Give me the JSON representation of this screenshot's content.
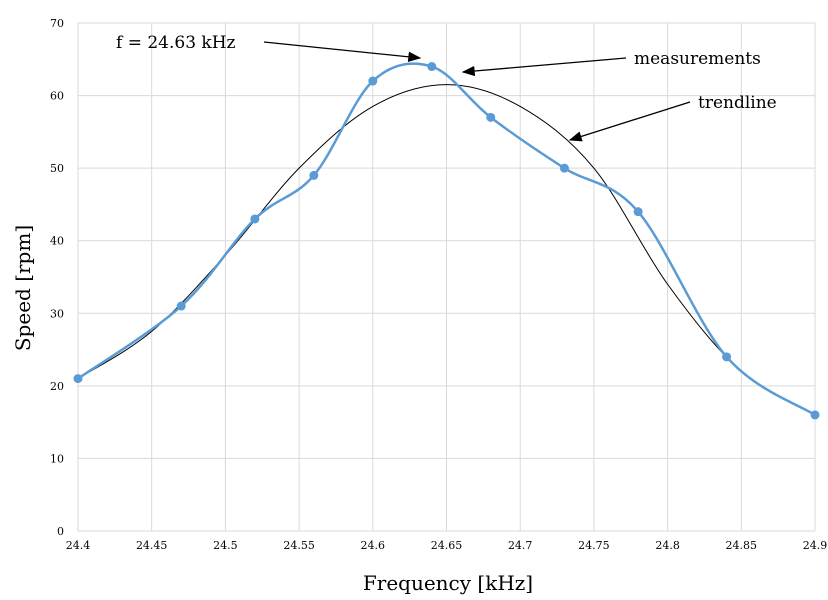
{
  "chart_data": {
    "type": "line",
    "xlabel": "Frequency [kHz]",
    "ylabel": "Speed [rpm]",
    "xlim": [
      24.4,
      24.9
    ],
    "ylim": [
      0,
      70
    ],
    "x_ticks": [
      "24.4",
      "24.45",
      "24.5",
      "24.55",
      "24.6",
      "24.65",
      "24.7",
      "24.75",
      "24.8",
      "24.85",
      "24.9"
    ],
    "y_ticks": [
      "0",
      "10",
      "20",
      "30",
      "40",
      "50",
      "60",
      "70"
    ],
    "grid": true,
    "series": [
      {
        "name": "measurements",
        "color": "#5b9bd5",
        "x": [
          24.4,
          24.47,
          24.52,
          24.56,
          24.6,
          24.64,
          24.68,
          24.73,
          24.78,
          24.84,
          24.9
        ],
        "y": [
          21,
          31,
          43,
          49,
          62,
          64,
          57,
          50,
          44,
          24,
          16
        ]
      },
      {
        "name": "trendline",
        "color": "#000000",
        "x": [
          24.4,
          24.45,
          24.5,
          24.55,
          24.6,
          24.65,
          24.7,
          24.75,
          24.8,
          24.85,
          24.9
        ],
        "y": [
          21,
          27.5,
          38,
          50,
          58.5,
          61.5,
          58.5,
          50,
          34,
          22,
          16
        ]
      }
    ],
    "annotations": [
      {
        "text": "f = 24.63 kHz"
      },
      {
        "text": "measurements"
      },
      {
        "text": "trendline"
      }
    ]
  }
}
